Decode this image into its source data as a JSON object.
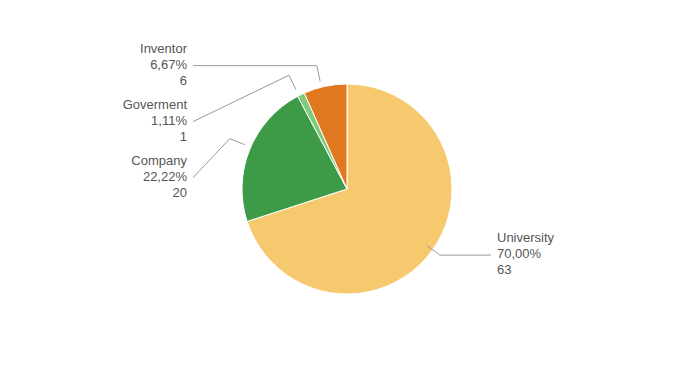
{
  "chart_data": {
    "type": "pie",
    "categories": [
      "University",
      "Company",
      "Goverment",
      "Inventor"
    ],
    "values": [
      70.0,
      22.22,
      1.11,
      6.67
    ],
    "value_labels": [
      "70,00%",
      "22,22%",
      "1,11%",
      "6,67%"
    ],
    "counts": [
      63,
      20,
      1,
      6
    ],
    "colors": [
      "#f7c96e",
      "#3d9a47",
      "#7dcc7d",
      "#e07820"
    ]
  }
}
